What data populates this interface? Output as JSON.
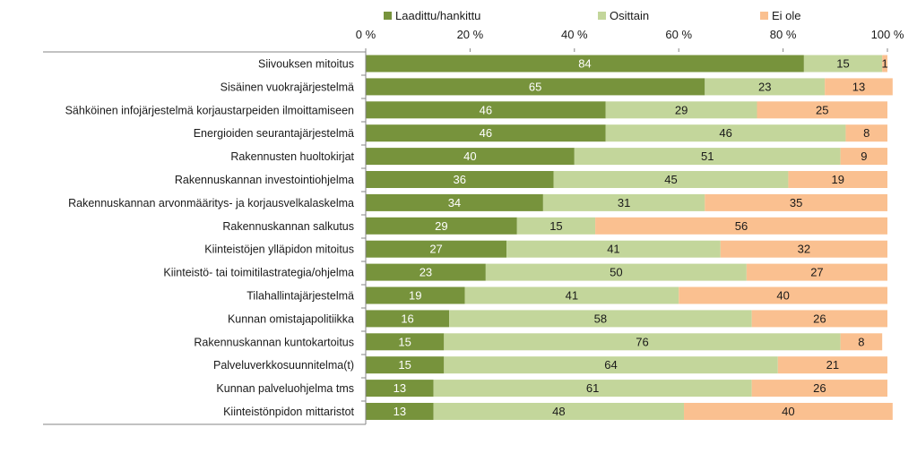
{
  "chart_data": {
    "type": "bar",
    "orientation": "horizontal",
    "stacked": true,
    "percent_stacked": true,
    "title": "",
    "xlabel": "",
    "ylabel": "",
    "xlim": [
      0,
      100
    ],
    "x_ticks": [
      "0 %",
      "20 %",
      "40 %",
      "60 %",
      "80 %",
      "100 %"
    ],
    "legend_position": "top",
    "categories": [
      "Siivouksen mitoitus",
      "Sisäinen vuokrajärjestelmä",
      "Sähköinen infojärjestelmä korjaustarpeiden ilmoittamiseen",
      "Energioiden seurantajärjestelmä",
      "Rakennusten huoltokirjat",
      "Rakennuskannan investointiohjelma",
      "Rakennuskannan arvonmääritys- ja korjausvelkalaskelma",
      "Rakennuskannan salkutus",
      "Kiinteistöjen ylläpidon mitoitus",
      "Kiinteistö- tai toimitilastrategia/ohjelma",
      "Tilahallintajärjestelmä",
      "Kunnan omistajapolitiikka",
      "Rakennuskannan kuntokartoitus",
      "Palveluverkkosuunnitelma(t)",
      "Kunnan palveluohjelma tms",
      "Kiinteistönpidon mittaristot"
    ],
    "series": [
      {
        "name": "Laadittu/hankittu",
        "color": "#77933c",
        "values": [
          84,
          65,
          46,
          46,
          40,
          36,
          34,
          29,
          27,
          23,
          19,
          16,
          15,
          15,
          13,
          13
        ]
      },
      {
        "name": "Osittain",
        "color": "#c3d69b",
        "values": [
          15,
          23,
          29,
          46,
          51,
          45,
          31,
          15,
          41,
          50,
          41,
          58,
          76,
          64,
          61,
          48
        ]
      },
      {
        "name": "Ei ole",
        "color": "#fac090",
        "values": [
          1,
          13,
          25,
          8,
          9,
          19,
          35,
          56,
          32,
          27,
          40,
          26,
          8,
          21,
          26,
          40
        ]
      }
    ]
  }
}
